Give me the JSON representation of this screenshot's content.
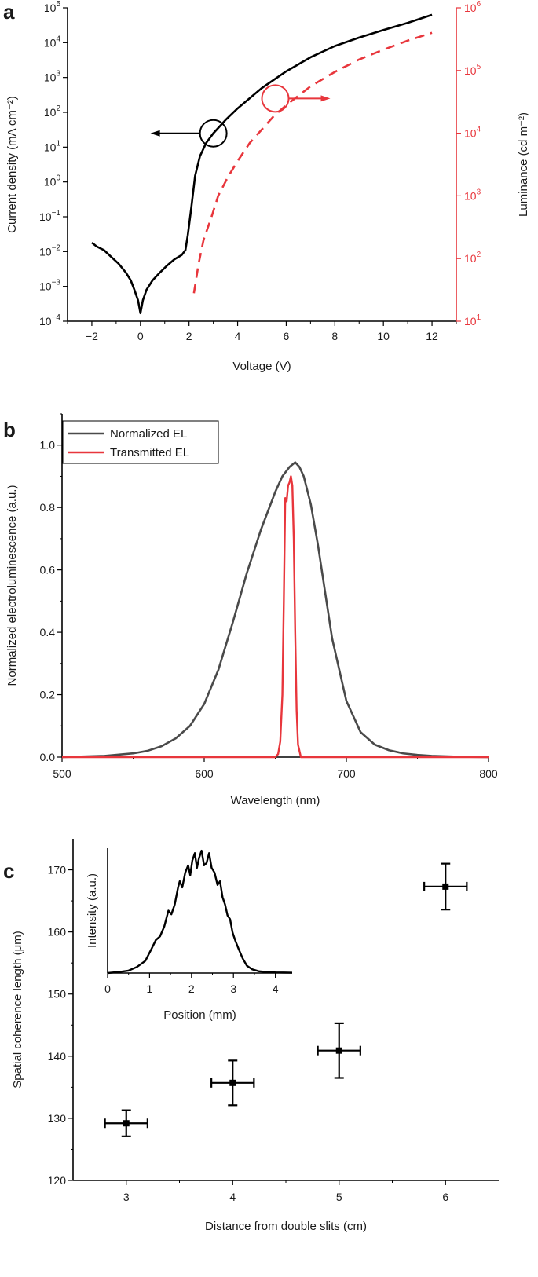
{
  "colors": {
    "ink": "#000000",
    "red": "#e8363c",
    "grey": "#4a4a4a"
  },
  "chart_data": [
    {
      "panel": "a",
      "type": "line",
      "xlabel": "Voltage (V)",
      "xlim": [
        -3,
        13
      ],
      "xticks": [
        -2,
        0,
        2,
        4,
        6,
        8,
        10,
        12
      ],
      "xtick_labels": [
        "−2",
        "0",
        "2",
        "4",
        "6",
        "8",
        "10",
        "12"
      ],
      "y_left": {
        "label": "Current density (mA cm⁻²)",
        "scale": "log",
        "lim": [
          0.0001,
          100000.0
        ],
        "tick_exponents": [
          -4,
          -3,
          -2,
          -1,
          0,
          1,
          2,
          3,
          4,
          5
        ],
        "tick_base": "10"
      },
      "y_right": {
        "label": "Luminance (cd m⁻²)",
        "scale": "log",
        "lim": [
          10,
          1000000.0
        ],
        "tick_exponents": [
          1,
          2,
          3,
          4,
          5,
          6
        ],
        "tick_base": "10"
      },
      "series": [
        {
          "name": "Current density",
          "axis": "left",
          "style": "solid",
          "color": "#000000",
          "x": [
            -2.0,
            -1.8,
            -1.5,
            -1.2,
            -0.9,
            -0.6,
            -0.4,
            -0.25,
            -0.1,
            0.0,
            0.1,
            0.25,
            0.5,
            0.8,
            1.1,
            1.4,
            1.7,
            1.85,
            1.95,
            2.1,
            2.25,
            2.45,
            2.7,
            3.0,
            3.5,
            4.0,
            5.0,
            6.0,
            7.0,
            8.0,
            9.0,
            10.0,
            11.0,
            12.0
          ],
          "y": [
            0.018,
            0.014,
            0.011,
            0.007,
            0.0045,
            0.0025,
            0.0015,
            0.0008,
            0.0004,
            0.00017,
            0.0004,
            0.0008,
            0.0015,
            0.0025,
            0.004,
            0.006,
            0.008,
            0.011,
            0.03,
            0.2,
            1.5,
            5.5,
            13,
            25,
            60,
            130,
            500,
            1500,
            3800,
            8000,
            14000,
            23000,
            37000,
            63000
          ]
        },
        {
          "name": "Luminance",
          "axis": "right",
          "style": "dashed",
          "color": "#e8363c",
          "x": [
            2.2,
            2.4,
            2.6,
            2.9,
            3.2,
            3.6,
            4.0,
            4.5,
            5.0,
            5.5,
            6.0,
            7.0,
            8.0,
            9.0,
            10.0,
            11.0,
            12.0
          ],
          "y": [
            28,
            85,
            200,
            430,
            1000,
            2000,
            3600,
            7000,
            11500,
            19000,
            28000,
            56000,
            95000,
            150000,
            215000,
            300000,
            400000
          ]
        }
      ],
      "annotations": [
        {
          "target": "black circle",
          "arrow": "left",
          "meaning": "left axis"
        },
        {
          "target": "red circle",
          "arrow": "right",
          "meaning": "right axis"
        }
      ]
    },
    {
      "panel": "b",
      "type": "line",
      "xlabel": "Wavelength (nm)",
      "ylabel": "Normalized electroluminescence (a.u.)",
      "xlim": [
        500,
        800
      ],
      "ylim": [
        0,
        1.1
      ],
      "xticks": [
        500,
        600,
        700,
        800
      ],
      "yticks": [
        0.0,
        0.2,
        0.4,
        0.6,
        0.8,
        1.0
      ],
      "ytick_labels": [
        "0.0",
        "0.2",
        "0.4",
        "0.6",
        "0.8",
        "1.0"
      ],
      "legend_position": "top-left",
      "series": [
        {
          "name": "Normalized EL",
          "color": "#4a4a4a",
          "x": [
            500,
            530,
            550,
            560,
            570,
            580,
            590,
            600,
            610,
            620,
            630,
            640,
            650,
            655,
            660,
            664,
            667,
            670,
            675,
            680,
            690,
            700,
            710,
            720,
            730,
            740,
            750,
            760,
            780,
            800
          ],
          "y": [
            0.0,
            0.004,
            0.012,
            0.02,
            0.035,
            0.06,
            0.1,
            0.17,
            0.28,
            0.43,
            0.59,
            0.73,
            0.85,
            0.9,
            0.93,
            0.945,
            0.93,
            0.9,
            0.81,
            0.68,
            0.38,
            0.18,
            0.08,
            0.04,
            0.022,
            0.012,
            0.007,
            0.004,
            0.001,
            0.0
          ]
        },
        {
          "name": "Transmitted EL",
          "color": "#e8363c",
          "x": [
            500,
            650,
            652,
            653.5,
            655,
            656,
            657,
            658,
            659,
            660,
            661,
            662,
            663,
            664,
            665,
            666,
            668,
            670,
            800
          ],
          "y": [
            0.0,
            0.0,
            0.01,
            0.05,
            0.2,
            0.5,
            0.83,
            0.82,
            0.87,
            0.88,
            0.9,
            0.87,
            0.7,
            0.4,
            0.15,
            0.04,
            0.0,
            0.0,
            0.0
          ]
        }
      ]
    },
    {
      "panel": "c",
      "type": "scatter",
      "xlabel": "Distance from double slits (cm)",
      "ylabel": "Spatial coherence length (μm)",
      "xlim": [
        2.5,
        6.5
      ],
      "ylim": [
        120,
        175
      ],
      "xticks": [
        3,
        4,
        5,
        6
      ],
      "yticks": [
        120,
        130,
        140,
        150,
        160,
        170
      ],
      "points": [
        {
          "x": 3,
          "y": 129.2,
          "xerr": 0.2,
          "yerr": 2.1
        },
        {
          "x": 4,
          "y": 135.7,
          "xerr": 0.2,
          "yerr": 3.6
        },
        {
          "x": 5,
          "y": 140.9,
          "xerr": 0.2,
          "yerr": 4.4
        },
        {
          "x": 6,
          "y": 167.3,
          "xerr": 0.2,
          "yerr": 3.7
        }
      ],
      "inset": {
        "type": "line",
        "xlabel": "Position (mm)",
        "ylabel": "Intensity (a.u.)",
        "xlim": [
          0,
          4.4
        ],
        "ylim": [
          0,
          1.02
        ],
        "xticks": [
          0,
          1,
          2,
          3,
          4
        ],
        "x": [
          0.0,
          0.3,
          0.5,
          0.7,
          0.9,
          1.05,
          1.15,
          1.25,
          1.35,
          1.45,
          1.52,
          1.6,
          1.68,
          1.72,
          1.78,
          1.85,
          1.92,
          1.97,
          2.02,
          2.08,
          2.13,
          2.18,
          2.24,
          2.3,
          2.36,
          2.42,
          2.48,
          2.55,
          2.62,
          2.68,
          2.74,
          2.8,
          2.86,
          2.92,
          2.98,
          3.05,
          3.12,
          3.22,
          3.32,
          3.45,
          3.6,
          3.8,
          4.0,
          4.2,
          4.4
        ],
        "y": [
          0.0,
          0.01,
          0.02,
          0.05,
          0.1,
          0.2,
          0.27,
          0.3,
          0.38,
          0.51,
          0.48,
          0.56,
          0.7,
          0.75,
          0.7,
          0.82,
          0.88,
          0.8,
          0.92,
          0.98,
          0.86,
          0.94,
          1.0,
          0.88,
          0.9,
          0.98,
          0.86,
          0.82,
          0.72,
          0.75,
          0.62,
          0.56,
          0.47,
          0.44,
          0.33,
          0.26,
          0.2,
          0.12,
          0.06,
          0.03,
          0.015,
          0.008,
          0.005,
          0.004,
          0.003
        ]
      }
    }
  ]
}
